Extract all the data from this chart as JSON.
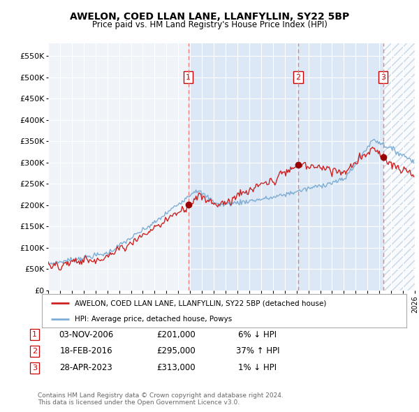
{
  "title": "AWELON, COED LLAN LANE, LLANFYLLIN, SY22 5BP",
  "subtitle": "Price paid vs. HM Land Registry's House Price Index (HPI)",
  "xlim_start": 1995.0,
  "xlim_end": 2026.0,
  "ylim": [
    0,
    580000
  ],
  "yticks": [
    0,
    50000,
    100000,
    150000,
    200000,
    250000,
    300000,
    350000,
    400000,
    450000,
    500000,
    550000
  ],
  "ytick_labels": [
    "£0",
    "£50K",
    "£100K",
    "£150K",
    "£200K",
    "£250K",
    "£300K",
    "£350K",
    "£400K",
    "£450K",
    "£500K",
    "£550K"
  ],
  "sale_dates": [
    2006.84,
    2016.12,
    2023.32
  ],
  "sale_prices": [
    201000,
    295000,
    313000
  ],
  "sale_labels": [
    "1",
    "2",
    "3"
  ],
  "sale_info": [
    {
      "label": "1",
      "date": "03-NOV-2006",
      "price": "£201,000",
      "hpi": "6% ↓ HPI"
    },
    {
      "label": "2",
      "date": "18-FEB-2016",
      "price": "£295,000",
      "hpi": "37% ↑ HPI"
    },
    {
      "label": "3",
      "date": "28-APR-2023",
      "price": "£313,000",
      "hpi": "1% ↓ HPI"
    }
  ],
  "legend_line1": "AWELON, COED LLAN LANE, LLANFYLLIN, SY22 5BP (detached house)",
  "legend_line2": "HPI: Average price, detached house, Powys",
  "footer1": "Contains HM Land Registry data © Crown copyright and database right 2024.",
  "footer2": "This data is licensed under the Open Government Licence v3.0.",
  "hpi_color": "#7dadd4",
  "price_color": "#cc2222",
  "sale_color": "#990000",
  "vline_color": "#e88080",
  "background_color": "#ffffff",
  "plot_bg_color": "#f0f4f8",
  "shade_color": "#dce8f5",
  "hatch_color": "#c8d8e8",
  "grid_color": "#ffffff"
}
